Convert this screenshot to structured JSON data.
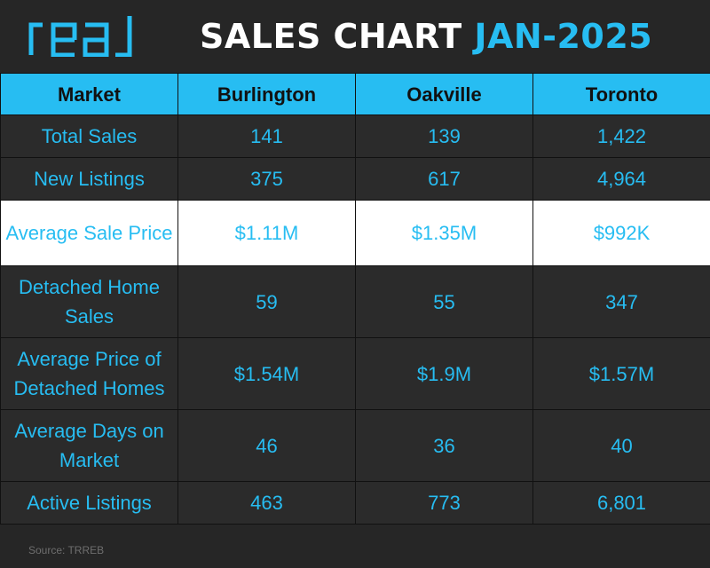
{
  "header": {
    "logo_alt": "real",
    "title_part1": "SALES CHART",
    "title_part2": "JAN-2025"
  },
  "table": {
    "headers": [
      "Market",
      "Burlington",
      "Oakville",
      "Toronto"
    ],
    "rows": [
      {
        "label": "Total Sales",
        "values": [
          "141",
          "139",
          "1,422"
        ]
      },
      {
        "label": "New Listings",
        "values": [
          "375",
          "617",
          "4,964"
        ]
      },
      {
        "label": "Average Sale Price",
        "values": [
          "$1.11M",
          "$1.35M",
          "$992K"
        ]
      },
      {
        "label": "Detached Home Sales",
        "values": [
          "59",
          "55",
          "347"
        ]
      },
      {
        "label": "Average Price of Detached Homes",
        "values": [
          "$1.54M",
          "$1.9M",
          "$1.57M"
        ]
      },
      {
        "label": "Average Days on Market",
        "values": [
          "46",
          "36",
          "40"
        ]
      },
      {
        "label": "Active Listings",
        "values": [
          "463",
          "773",
          "6,801"
        ]
      }
    ]
  },
  "footer": {
    "source": "Source: TRREB"
  },
  "colors": {
    "accent": "#27bdf2",
    "background": "#262626",
    "highlight_row": "#ffffff"
  }
}
